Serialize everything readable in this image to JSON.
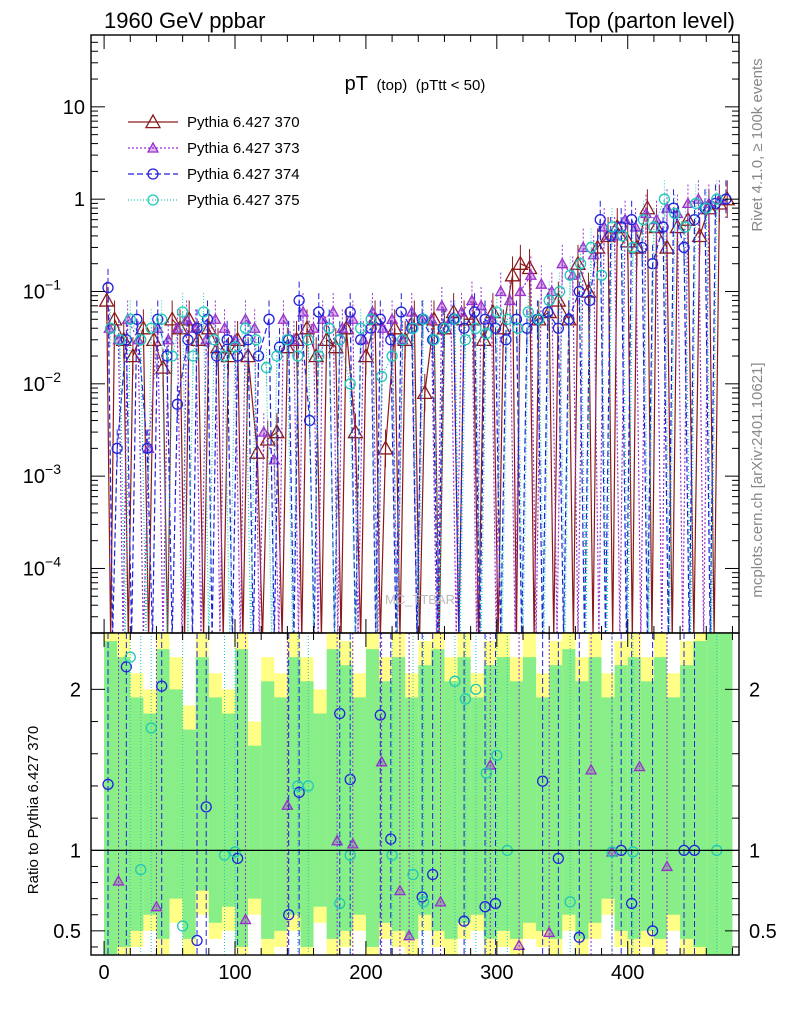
{
  "header": {
    "left": "1960 GeV ppbar",
    "right": "Top (parton level)"
  },
  "side_labels": {
    "rivet": "Rivet 4.1.0, ≥ 100k events",
    "mcplots": "mcplots.cern.ch [arXiv:2401.10621]"
  },
  "watermark": "MC_TTBAR",
  "colors": {
    "s370": "#8b1a1a",
    "s373": "#9932cc",
    "s374": "#2222dd",
    "s375": "#20c8b8",
    "band_yellow": "#ffff88",
    "band_green": "#88ee88"
  },
  "chart_data": [
    {
      "type": "line",
      "title": "pT",
      "title_parts": [
        "pT",
        "(top)",
        "(pTtt < 50)"
      ],
      "xlabel": "",
      "ylabel": "",
      "yscale": "log",
      "xlim": [
        -10,
        485
      ],
      "ylim": [
        2e-05,
        60
      ],
      "y_ticks": [
        {
          "value": 10,
          "label": "10"
        },
        {
          "value": 1,
          "label": "1"
        },
        {
          "value": 0.1,
          "label": "10",
          "exp": "−1"
        },
        {
          "value": 0.01,
          "label": "10",
          "exp": "−2"
        },
        {
          "value": 0.001,
          "label": "10",
          "exp": "−3"
        },
        {
          "value": 0.0001,
          "label": "10",
          "exp": "−4"
        }
      ],
      "legend": [
        "Pythia 6.427 370",
        "Pythia 6.427 373",
        "Pythia 6.427 374",
        "Pythia 6.427 375"
      ],
      "legend_position": "top-left",
      "series": [
        {
          "name": "Pythia 6.427 370",
          "x": [
            2,
            8,
            15,
            22,
            30,
            38,
            45,
            52,
            58,
            65,
            72,
            80,
            87,
            95,
            102,
            110,
            117,
            125,
            132,
            140,
            147,
            155,
            162,
            170,
            177,
            185,
            192,
            200,
            207,
            215,
            222,
            230,
            237,
            245,
            252,
            260,
            267,
            275,
            282,
            290,
            297,
            305,
            312,
            318,
            325,
            332,
            340,
            347,
            355,
            362,
            370,
            377,
            385,
            392,
            400,
            407,
            415,
            422,
            430,
            438,
            446,
            455,
            462,
            470,
            476
          ],
          "y": [
            0.08,
            0.05,
            0.03,
            0.02,
            0.04,
            0.03,
            0.015,
            0.05,
            0.04,
            0.05,
            0.03,
            0.04,
            0.025,
            0.02,
            0.03,
            0.02,
            0.0018,
            0.0025,
            0.003,
            0.025,
            0.03,
            0.04,
            0.02,
            0.03,
            0.025,
            0.04,
            0.003,
            0.02,
            0.05,
            0.002,
            0.04,
            0.03,
            0.05,
            0.008,
            0.05,
            0.04,
            0.06,
            0.05,
            0.05,
            0.03,
            0.06,
            0.04,
            0.15,
            0.2,
            0.18,
            0.05,
            0.06,
            0.08,
            0.05,
            0.2,
            0.1,
            0.3,
            0.4,
            0.5,
            0.35,
            0.3,
            0.8,
            0.5,
            0.3,
            0.5,
            0.6,
            0.4,
            0.8,
            0.9,
            1.0
          ]
        },
        {
          "name": "Pythia 6.427 373",
          "x": [
            4,
            11,
            18,
            26,
            34,
            41,
            49,
            56,
            63,
            70,
            78,
            85,
            92,
            100,
            108,
            115,
            122,
            130,
            137,
            145,
            152,
            160,
            167,
            175,
            182,
            190,
            198,
            205,
            213,
            220,
            228,
            235,
            243,
            250,
            258,
            265,
            273,
            281,
            288,
            296,
            303,
            310,
            318,
            326,
            334,
            342,
            350,
            358,
            366,
            374,
            382,
            390,
            398,
            406,
            414,
            422,
            430,
            438,
            446,
            454,
            462,
            470
          ],
          "y": [
            0.04,
            0.03,
            0.05,
            0.03,
            0.002,
            0.04,
            0.03,
            0.04,
            0.05,
            0.04,
            0.03,
            0.05,
            0.04,
            0.03,
            0.05,
            0.04,
            0.003,
            0.0015,
            0.05,
            0.03,
            0.06,
            0.04,
            0.05,
            0.06,
            0.04,
            0.05,
            0.03,
            0.06,
            0.04,
            0.05,
            0.03,
            0.06,
            0.05,
            0.05,
            0.07,
            0.05,
            0.06,
            0.08,
            0.07,
            0.05,
            0.1,
            0.08,
            0.1,
            0.15,
            0.12,
            0.1,
            0.2,
            0.15,
            0.3,
            0.25,
            0.5,
            0.4,
            0.6,
            0.5,
            0.7,
            0.6,
            0.8,
            0.7,
            0.9,
            1.0,
            0.9,
            1.0
          ]
        },
        {
          "name": "Pythia 6.427 374",
          "x": [
            3,
            10,
            17,
            25,
            33,
            41,
            48,
            56,
            64,
            71,
            79,
            86,
            94,
            102,
            110,
            118,
            126,
            134,
            141,
            149,
            157,
            164,
            172,
            180,
            188,
            196,
            204,
            211,
            219,
            227,
            235,
            243,
            251,
            259,
            267,
            275,
            283,
            291,
            299,
            307,
            315,
            323,
            331,
            339,
            347,
            355,
            363,
            371,
            379,
            387,
            395,
            403,
            411,
            419,
            427,
            435,
            443,
            451,
            459,
            467,
            475
          ],
          "y": [
            0.11,
            0.002,
            0.03,
            0.05,
            0.002,
            0.05,
            0.02,
            0.006,
            0.03,
            0.04,
            0.05,
            0.02,
            0.03,
            0.02,
            0.03,
            0.02,
            0.05,
            0.025,
            0.03,
            0.08,
            0.004,
            0.06,
            0.04,
            0.03,
            0.06,
            0.03,
            0.04,
            0.05,
            0.03,
            0.06,
            0.04,
            0.05,
            0.03,
            0.04,
            0.05,
            0.04,
            0.06,
            0.05,
            0.04,
            0.03,
            0.05,
            0.04,
            0.05,
            0.06,
            0.04,
            0.05,
            0.1,
            0.08,
            0.6,
            0.4,
            0.5,
            0.6,
            0.3,
            0.2,
            0.5,
            0.8,
            0.3,
            0.6,
            0.8,
            0.9,
            1.0
          ]
        },
        {
          "name": "Pythia 6.427 375",
          "x": [
            5,
            12,
            20,
            28,
            36,
            44,
            52,
            60,
            68,
            76,
            84,
            92,
            100,
            108,
            116,
            124,
            132,
            140,
            148,
            156,
            164,
            172,
            180,
            188,
            196,
            204,
            212,
            220,
            228,
            236,
            244,
            252,
            260,
            268,
            276,
            284,
            292,
            300,
            308,
            316,
            324,
            332,
            340,
            348,
            356,
            364,
            372,
            380,
            388,
            396,
            404,
            412,
            420,
            428,
            436,
            444,
            452,
            460,
            468
          ],
          "y": [
            0.04,
            0.03,
            0.05,
            0.03,
            0.04,
            0.05,
            0.02,
            0.06,
            0.02,
            0.06,
            0.03,
            0.02,
            0.025,
            0.04,
            0.03,
            0.015,
            0.02,
            0.03,
            0.02,
            0.03,
            0.02,
            0.04,
            0.03,
            0.01,
            0.04,
            0.05,
            0.012,
            0.02,
            0.03,
            0.04,
            0.05,
            0.03,
            0.04,
            0.05,
            0.03,
            0.04,
            0.035,
            0.06,
            0.05,
            0.04,
            0.06,
            0.05,
            0.08,
            0.1,
            0.15,
            0.2,
            0.3,
            0.15,
            0.5,
            0.4,
            0.3,
            0.6,
            0.5,
            1.0,
            0.7,
            0.5,
            0.9,
            0.8,
            1.0
          ]
        }
      ]
    },
    {
      "type": "line",
      "title": "",
      "xlabel": "",
      "ylabel": "Ratio to Pythia 6.427 370",
      "xlim": [
        -10,
        485
      ],
      "ylim": [
        0.35,
        2.35
      ],
      "x_ticks": [
        0,
        100,
        200,
        300,
        400
      ],
      "y_ticks": [
        {
          "value": 0.5,
          "label": "0.5"
        },
        {
          "value": 1,
          "label": "1"
        },
        {
          "value": 2,
          "label": "2"
        }
      ],
      "reference_line": 1,
      "bands": {
        "x": [
          0,
          10,
          20,
          30,
          40,
          50,
          60,
          70,
          80,
          90,
          100,
          110,
          120,
          130,
          140,
          150,
          160,
          170,
          180,
          190,
          200,
          210,
          220,
          230,
          240,
          250,
          260,
          270,
          280,
          290,
          300,
          310,
          320,
          330,
          340,
          350,
          360,
          370,
          380,
          390,
          400,
          410,
          420,
          430,
          440,
          450,
          460,
          470
        ],
        "width": 10,
        "yellow_lo": [
          0.35,
          0.35,
          0.4,
          0.5,
          0.35,
          0.55,
          0.35,
          0.6,
          0.45,
          0.5,
          0.35,
          0.6,
          0.35,
          0.4,
          0.5,
          0.35,
          0.55,
          0.35,
          0.4,
          0.5,
          0.35,
          0.45,
          0.4,
          0.35,
          0.5,
          0.4,
          0.35,
          0.45,
          0.5,
          0.35,
          0.4,
          0.35,
          0.45,
          0.4,
          0.35,
          0.5,
          0.35,
          0.45,
          0.6,
          0.4,
          0.35,
          0.4,
          0.35,
          0.5,
          0.35,
          0.35,
          0.35,
          0.35
        ],
        "yellow_hi": [
          2.35,
          2.35,
          2.1,
          2.0,
          2.35,
          2.2,
          1.9,
          2.35,
          2.1,
          2.0,
          2.35,
          1.8,
          2.2,
          2.1,
          2.35,
          2.2,
          2.0,
          2.35,
          2.3,
          2.1,
          2.35,
          2.2,
          2.35,
          2.1,
          2.3,
          2.35,
          2.2,
          2.35,
          2.1,
          2.3,
          2.35,
          2.2,
          2.35,
          2.1,
          2.3,
          2.35,
          2.2,
          2.35,
          2.1,
          2.3,
          2.35,
          2.2,
          2.35,
          2.1,
          2.3,
          2.35,
          2.35,
          2.35
        ],
        "green_lo": [
          0.35,
          0.4,
          0.5,
          0.6,
          0.45,
          0.7,
          0.45,
          0.75,
          0.55,
          0.65,
          0.4,
          0.7,
          0.45,
          0.5,
          0.6,
          0.4,
          0.65,
          0.45,
          0.5,
          0.6,
          0.4,
          0.55,
          0.5,
          0.45,
          0.6,
          0.5,
          0.45,
          0.55,
          0.6,
          0.45,
          0.5,
          0.45,
          0.55,
          0.5,
          0.45,
          0.6,
          0.45,
          0.55,
          0.7,
          0.5,
          0.45,
          0.5,
          0.45,
          0.6,
          0.45,
          0.4,
          0.35,
          0.35
        ],
        "green_hi": [
          2.3,
          2.2,
          1.95,
          1.85,
          2.25,
          2.0,
          1.75,
          2.2,
          1.95,
          1.85,
          2.25,
          1.65,
          2.05,
          1.95,
          2.2,
          2.05,
          1.85,
          2.25,
          2.15,
          1.95,
          2.25,
          2.05,
          2.2,
          1.95,
          2.15,
          2.25,
          2.05,
          2.2,
          1.95,
          2.15,
          2.2,
          2.05,
          2.2,
          1.95,
          2.15,
          2.25,
          2.05,
          2.2,
          1.95,
          2.15,
          2.2,
          2.05,
          2.2,
          1.95,
          2.15,
          2.3,
          2.35,
          2.35
        ]
      },
      "series": [
        {
          "name": "Pythia 6.427 373",
          "x": [
            11,
            40,
            108,
            140,
            178,
            190,
            212,
            226,
            233,
            257,
            295,
            317,
            340,
            372,
            388,
            409,
            430
          ],
          "y": [
            0.81,
            0.65,
            0.57,
            1.28,
            1.06,
            1.04,
            1.55,
            0.75,
            0.47,
            0.68,
            1.53,
            0.41,
            0.49,
            1.5,
            0.99,
            1.52,
            0.9
          ]
        },
        {
          "name": "Pythia 6.427 374",
          "x": [
            3,
            17,
            44,
            71,
            78,
            102,
            141,
            149,
            180,
            188,
            211,
            219,
            243,
            251,
            275,
            291,
            299,
            335,
            347,
            363,
            395,
            403,
            419,
            443,
            451
          ],
          "y": [
            1.41,
            2.14,
            2.02,
            0.44,
            1.27,
            0.95,
            0.6,
            1.36,
            1.85,
            1.44,
            1.84,
            1.07,
            0.71,
            0.85,
            0.56,
            0.65,
            0.67,
            1.43,
            0.95,
            0.46,
            1.0,
            0.67,
            0.5,
            1.0,
            1.0
          ]
        },
        {
          "name": "Pythia 6.427 375",
          "x": [
            20,
            28,
            36,
            60,
            92,
            100,
            148,
            156,
            180,
            188,
            220,
            236,
            244,
            268,
            276,
            284,
            292,
            300,
            308,
            356,
            388,
            404,
            468
          ],
          "y": [
            2.2,
            0.88,
            1.76,
            0.53,
            0.97,
            0.99,
            1.4,
            1.4,
            0.67,
            0.97,
            0.97,
            0.85,
            0.68,
            2.05,
            1.94,
            2.0,
            1.48,
            1.59,
            1.0,
            0.68,
            0.99,
            0.99,
            1.0
          ]
        }
      ]
    }
  ]
}
